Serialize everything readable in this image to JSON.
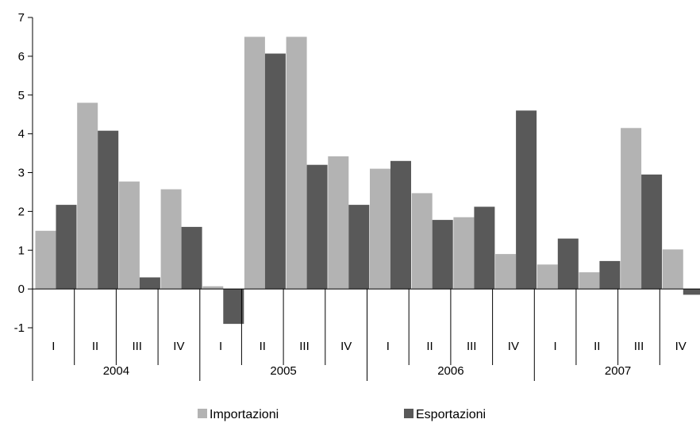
{
  "chart_data": {
    "type": "bar",
    "title": "",
    "xlabel": "",
    "ylabel": "",
    "ylim": [
      -1,
      7
    ],
    "yticks": [
      -1,
      0,
      1,
      2,
      3,
      4,
      5,
      6,
      7
    ],
    "ytick_labels": [
      "-1",
      "0",
      "1",
      "2",
      "3",
      "4",
      "5",
      "6",
      "7"
    ],
    "categories": [
      "I",
      "II",
      "III",
      "IV",
      "I",
      "II",
      "III",
      "IV",
      "I",
      "II",
      "III",
      "IV",
      "I",
      "II",
      "III",
      "IV"
    ],
    "groups": [
      "2004",
      "2005",
      "2006",
      "2007"
    ],
    "series": [
      {
        "name": "Importazioni",
        "color": "#b3b3b3",
        "values": [
          1.5,
          4.8,
          2.77,
          2.57,
          0.07,
          6.5,
          6.5,
          3.42,
          3.1,
          2.47,
          1.85,
          0.9,
          0.63,
          0.43,
          4.15,
          1.02
        ]
      },
      {
        "name": "Esportazioni",
        "color": "#595959",
        "values": [
          2.17,
          4.08,
          0.3,
          1.6,
          -0.9,
          6.07,
          3.2,
          2.17,
          3.3,
          1.78,
          2.12,
          4.6,
          1.3,
          0.72,
          2.95,
          -0.15
        ]
      }
    ],
    "legend_position": "bottom",
    "grid": false
  }
}
